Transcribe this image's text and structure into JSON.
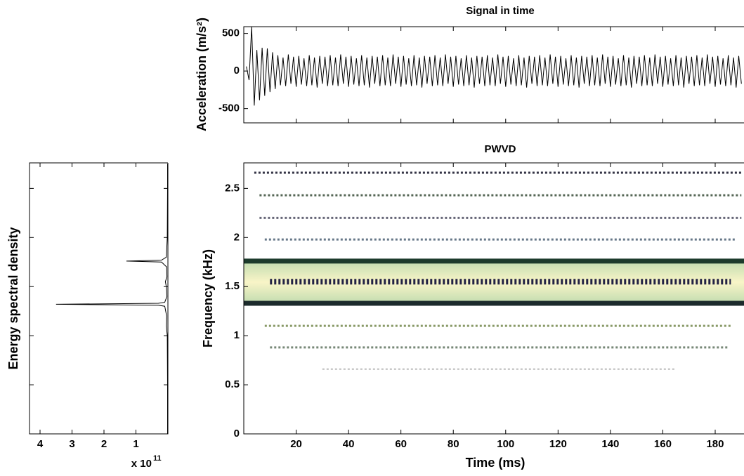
{
  "chart_data": [
    {
      "type": "line",
      "title": "Signal in time",
      "ylabel": "Acceleration (m/s²)",
      "color": "#000000",
      "x": [
        1,
        2,
        3,
        4,
        5,
        6,
        7,
        8,
        9,
        10,
        11,
        12,
        13,
        14,
        15,
        16,
        17,
        18,
        19,
        20,
        21,
        22,
        23,
        24,
        25,
        26,
        27,
        28,
        29,
        30,
        31,
        32,
        33,
        34,
        35,
        36,
        37,
        38,
        39,
        40,
        41,
        42,
        43,
        44,
        45,
        46,
        47,
        48,
        49,
        50,
        51,
        52,
        53,
        54,
        55,
        56,
        57,
        58,
        59,
        60,
        61,
        62,
        63,
        64,
        65,
        66,
        67,
        68,
        69,
        70,
        71,
        72,
        73,
        74,
        75,
        76,
        77,
        78,
        79,
        80,
        81,
        82,
        83,
        84,
        85,
        86,
        87,
        88,
        89,
        90,
        91,
        92,
        93,
        94,
        95,
        96,
        97,
        98,
        99,
        100,
        101,
        102,
        103,
        104,
        105,
        106,
        107,
        108,
        109,
        110,
        111,
        112,
        113,
        114,
        115,
        116,
        117,
        118,
        119,
        120,
        121,
        122,
        123,
        124,
        125,
        126,
        127,
        128,
        129,
        130,
        131,
        132,
        133,
        134,
        135,
        136,
        137,
        138,
        139,
        140,
        141,
        142,
        143,
        144,
        145,
        146,
        147,
        148,
        149,
        150,
        151,
        152,
        153,
        154,
        155,
        156,
        157,
        158,
        159,
        160,
        161,
        162,
        163,
        164,
        165,
        166,
        167,
        168,
        169,
        170,
        171,
        172,
        173,
        174,
        175,
        176,
        177,
        178,
        179,
        180,
        181,
        182,
        183,
        184,
        185,
        186,
        187,
        188,
        189,
        190
      ],
      "values": [
        60,
        -120,
        590,
        -460,
        280,
        -390,
        310,
        -330,
        300,
        -280,
        250,
        -240,
        210,
        -190,
        180,
        -200,
        220,
        -170,
        190,
        -210,
        200,
        -180,
        170,
        -200,
        210,
        -190,
        180,
        -220,
        200,
        -170,
        190,
        -200,
        210,
        -190,
        180,
        -200,
        220,
        -170,
        190,
        -210,
        200,
        -180,
        170,
        -200,
        210,
        -190,
        180,
        -220,
        200,
        -170,
        190,
        -200,
        210,
        -190,
        180,
        -200,
        220,
        -170,
        190,
        -210,
        200,
        -180,
        170,
        -200,
        210,
        -190,
        180,
        -220,
        200,
        -170,
        190,
        -200,
        210,
        -190,
        180,
        -200,
        220,
        -170,
        190,
        -210,
        200,
        -180,
        170,
        -200,
        210,
        -190,
        180,
        -220,
        200,
        -170,
        190,
        -200,
        210,
        -190,
        180,
        -200,
        220,
        -170,
        190,
        -210,
        200,
        -180,
        170,
        -200,
        210,
        -190,
        180,
        -220,
        200,
        -170,
        190,
        -200,
        210,
        -190,
        180,
        -200,
        220,
        -170,
        190,
        -210,
        200,
        -180,
        170,
        -200,
        210,
        -190,
        180,
        -220,
        200,
        -170,
        190,
        -200,
        210,
        -190,
        180,
        -200,
        220,
        -170,
        190,
        -210,
        200,
        -180,
        170,
        -200,
        210,
        -190,
        180,
        -220,
        200,
        -170,
        190,
        -200,
        210,
        -190,
        180,
        -200,
        220,
        -170,
        190,
        -210,
        200,
        -180,
        170,
        -200,
        210,
        -190,
        180,
        -220,
        200,
        -170,
        190,
        -200,
        210,
        -190,
        180,
        -200,
        220,
        -170,
        190,
        -210,
        200,
        -180,
        170,
        -200,
        210,
        -190,
        180,
        -220,
        200,
        -170
      ],
      "xlim": [
        0,
        191
      ],
      "ylim": [
        -690,
        590
      ],
      "yticks": [
        -500,
        0,
        500
      ]
    },
    {
      "type": "spectrum",
      "ylabel": "Energy spectral density",
      "color": "#000000",
      "multiplier": {
        "base": "x 10",
        "exponent": "11"
      },
      "y": [
        0,
        0.5,
        1.0,
        1.1,
        1.2,
        1.3,
        1.31,
        1.32,
        1.33,
        1.34,
        1.4,
        1.5,
        1.55,
        1.6,
        1.7,
        1.75,
        1.76,
        1.77,
        1.8,
        2.0,
        2.5,
        2.75
      ],
      "values": [
        0.01,
        0.01,
        0.02,
        0.05,
        0.04,
        0.1,
        0.3,
        3.5,
        0.3,
        0.1,
        0.03,
        0.05,
        0.08,
        0.03,
        0.04,
        0.2,
        1.3,
        0.2,
        0.05,
        0.02,
        0.01,
        0.01
      ],
      "xlim": [
        4.33,
        0
      ],
      "xticks": [
        4,
        3,
        2,
        1
      ],
      "ylim": [
        0,
        2.76
      ]
    },
    {
      "type": "bands",
      "title": "PWVD",
      "xlabel": "Time (ms)",
      "ylabel": "Frequency (kHz)",
      "xlim": [
        0,
        191
      ],
      "ylim": [
        0,
        2.76
      ],
      "xticks": [
        20,
        40,
        60,
        80,
        100,
        120,
        140,
        160,
        180
      ],
      "yticks": [
        0,
        0.5,
        1,
        1.5,
        2,
        2.5
      ],
      "bands": [
        {
          "frequency": 2.66,
          "start": 4,
          "end": 190,
          "color": "#333344",
          "width": 3,
          "style": "dashed"
        },
        {
          "frequency": 2.43,
          "start": 6,
          "end": 190,
          "color": "#556655",
          "width": 3,
          "style": "dashed"
        },
        {
          "frequency": 2.2,
          "start": 6,
          "end": 190,
          "color": "#666677",
          "width": 3,
          "style": "dashed"
        },
        {
          "frequency": 1.98,
          "start": 8,
          "end": 188,
          "color": "#667788",
          "width": 3,
          "style": "dashed"
        },
        {
          "frequency": 1.76,
          "start": 0,
          "end": 191,
          "color": "#1c3b2c",
          "width": 7,
          "style": "solid"
        },
        {
          "frequency": 1.55,
          "start": 10,
          "end": 186,
          "color": "#222244",
          "width": 8,
          "style": "dashed"
        },
        {
          "frequency": 1.33,
          "start": 0,
          "end": 191,
          "color": "#1c2b2c",
          "width": 7,
          "style": "solid"
        },
        {
          "frequency": 1.1,
          "start": 8,
          "end": 186,
          "color": "#889966",
          "width": 3,
          "style": "dashed"
        },
        {
          "frequency": 0.88,
          "start": 10,
          "end": 185,
          "color": "#778877",
          "width": 3,
          "style": "dashed"
        },
        {
          "frequency": 0.66,
          "start": 30,
          "end": 165,
          "color": "#bbbbbb",
          "width": 2,
          "style": "dashed"
        }
      ]
    }
  ]
}
